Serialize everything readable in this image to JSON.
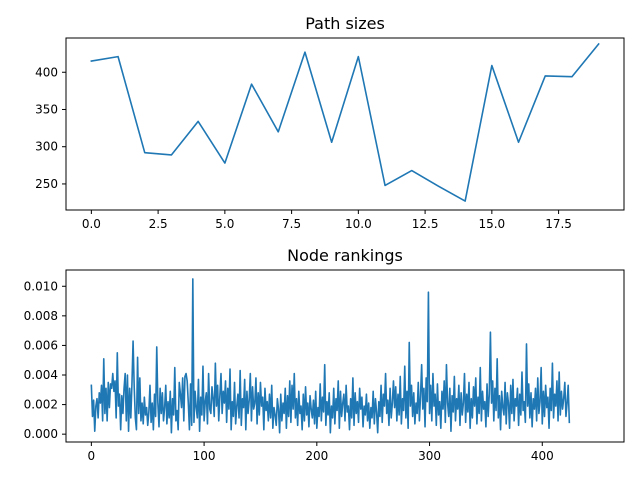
{
  "chart_data": [
    {
      "type": "line",
      "title": "Path sizes",
      "xlabel": "",
      "ylabel": "",
      "xlim": [
        -0.95,
        19.95
      ],
      "ylim": [
        215,
        446
      ],
      "xticks": [
        0.0,
        2.5,
        5.0,
        7.5,
        10.0,
        12.5,
        15.0,
        17.5
      ],
      "xtick_labels": [
        "0.0",
        "2.5",
        "5.0",
        "7.5",
        "10.0",
        "12.5",
        "15.0",
        "17.5"
      ],
      "yticks": [
        250,
        300,
        350,
        400
      ],
      "ytick_labels": [
        "250",
        "300",
        "350",
        "400"
      ],
      "grid": false,
      "color": "#1f77b4",
      "x": [
        0,
        1,
        2,
        3,
        4,
        5,
        6,
        7,
        8,
        9,
        10,
        11,
        12,
        13,
        14,
        15,
        16,
        17,
        18,
        19
      ],
      "y": [
        415,
        421,
        292,
        289,
        334,
        278,
        384,
        320,
        427,
        306,
        421,
        248,
        268,
        247,
        227,
        409,
        306,
        395,
        394,
        438
      ]
    },
    {
      "type": "line",
      "title": "Node rankings",
      "xlabel": "",
      "ylabel": "",
      "xlim": [
        -22.5,
        472.5
      ],
      "ylim": [
        -0.00053,
        0.0111
      ],
      "xticks": [
        0,
        100,
        200,
        300,
        400
      ],
      "xtick_labels": [
        "0",
        "100",
        "200",
        "300",
        "400"
      ],
      "yticks": [
        0.0,
        0.002,
        0.004,
        0.006,
        0.008,
        0.01
      ],
      "ytick_labels": [
        "0.000",
        "0.002",
        "0.004",
        "0.006",
        "0.008",
        "0.010"
      ],
      "grid": false,
      "color": "#1f77b4",
      "x_start": 0,
      "x_step": 1,
      "y": [
        0.0033,
        0.0012,
        0.0023,
        0.0002,
        0.0019,
        0.0024,
        0.0011,
        0.0028,
        0.0021,
        0.0033,
        0.0009,
        0.0051,
        0.0014,
        0.0031,
        0.0009,
        0.0035,
        0.0018,
        0.0034,
        0.0031,
        0.0041,
        0.0029,
        0.0036,
        0.0011,
        0.0055,
        0.0019,
        0.0027,
        0.0003,
        0.0026,
        0.0014,
        0.0031,
        0.0041,
        0.0009,
        0.004,
        0.0002,
        0.0031,
        0.0011,
        0.0034,
        0.0063,
        0.0032,
        0.0011,
        0.0003,
        0.0052,
        0.0014,
        0.0038,
        0.0009,
        0.0021,
        0.0007,
        0.0025,
        0.0013,
        0.0018,
        0.0006,
        0.0015,
        0.0033,
        0.0008,
        0.0021,
        0.0003,
        0.0027,
        0.0012,
        0.0059,
        0.0021,
        0.0005,
        0.0031,
        0.0014,
        0.0028,
        0.0009,
        0.0018,
        0.0033,
        0.0007,
        0.0022,
        0.0011,
        0.0029,
        0.0001,
        0.0024,
        0.0013,
        0.0045,
        0.0009,
        0.0016,
        0.0003,
        0.0035,
        0.0027,
        0.0018,
        0.0038,
        0.0009,
        0.0039,
        0.0041,
        0.0036,
        0.0021,
        0.0003,
        0.0034,
        0.0006,
        0.0105,
        0.0008,
        0.0029,
        0.0018,
        0.0011,
        0.0037,
        0.0002,
        0.0025,
        0.0013,
        0.0046,
        0.0009,
        0.0022,
        0.0028,
        0.0007,
        0.0041,
        0.0017,
        0.0014,
        0.0032,
        0.0024,
        0.0012,
        0.0048,
        0.0019,
        0.0033,
        0.0009,
        0.0026,
        0.0041,
        0.0014,
        0.0029,
        0.0021,
        0.0036,
        0.0008,
        0.0031,
        0.0017,
        0.0044,
        0.0003,
        0.0022,
        0.0012,
        0.0035,
        0.0007,
        0.0019,
        0.0027,
        0.0011,
        0.0043,
        0.0006,
        0.0024,
        0.0018,
        0.0037,
        0.0003,
        0.0029,
        0.0014,
        0.0023,
        0.0041,
        0.0009,
        0.0032,
        0.0017,
        0.0021,
        0.0038,
        0.0007,
        0.0028,
        0.0013,
        0.0035,
        0.0019,
        0.0025,
        0.0003,
        0.0031,
        0.0016,
        0.0022,
        0.0009,
        0.0027,
        0.0011,
        0.0033,
        0.0004,
        0.0018,
        0.0013,
        0.0006,
        0.0024,
        0.0017,
        0.0001,
        0.0027,
        0.0009,
        0.0021,
        0.0014,
        0.0031,
        0.0004,
        0.0026,
        0.0012,
        0.0036,
        0.0008,
        0.0033,
        0.0017,
        0.0041,
        0.0011,
        0.0024,
        0.0006,
        0.0029,
        0.0014,
        0.0019,
        0.0003,
        0.0027,
        0.0009,
        0.0032,
        0.0013,
        0.0021,
        0.0005,
        0.0026,
        0.0017,
        0.0011,
        0.0023,
        0.0007,
        0.0029,
        0.0004,
        0.0018,
        0.0012,
        0.0034,
        0.0009,
        0.0025,
        0.0015,
        0.0047,
        0.0006,
        0.0022,
        0.0013,
        0.0028,
        0.0001,
        0.0019,
        0.0011,
        0.0031,
        0.0007,
        0.0024,
        0.0016,
        0.0036,
        0.0004,
        0.0029,
        0.0012,
        0.0021,
        0.0027,
        0.0009,
        0.0033,
        0.0015,
        0.0019,
        0.0003,
        0.0024,
        0.0011,
        0.0038,
        0.0006,
        0.0028,
        0.0014,
        0.0022,
        0.0008,
        0.0031,
        0.0017,
        0.0025,
        0.0005,
        0.0019,
        0.0013,
        0.0027,
        0.0009,
        0.0021,
        0.0004,
        0.0018,
        0.0011,
        0.0029,
        0.0007,
        0.0024,
        0.0015,
        0.0001,
        0.0022,
        0.0012,
        0.0033,
        0.0008,
        0.0027,
        0.0019,
        0.0041,
        0.0014,
        0.0023,
        0.0006,
        0.0031,
        0.0011,
        0.0021,
        0.0036,
        0.0018,
        0.0032,
        0.0009,
        0.0027,
        0.0013,
        0.0039,
        0.0007,
        0.0024,
        0.0016,
        0.0046,
        0.0011,
        0.0029,
        0.0004,
        0.0062,
        0.0019,
        0.0033,
        0.0012,
        0.0028,
        0.0007,
        0.0021,
        0.0014,
        0.0035,
        0.0009,
        0.0026,
        0.0047,
        0.0017,
        0.0031,
        0.0005,
        0.0038,
        0.0022,
        0.0096,
        0.0014,
        0.0033,
        0.0009,
        0.0041,
        0.0019,
        0.0027,
        0.0006,
        0.0034,
        0.0013,
        0.0022,
        0.0004,
        0.0029,
        0.0017,
        0.0036,
        0.0008,
        0.0047,
        0.0021,
        0.0012,
        0.0031,
        0.0002,
        0.0026,
        0.0015,
        0.0039,
        0.0009,
        0.0024,
        0.0017,
        0.0033,
        0.0006,
        0.0028,
        0.0013,
        0.0021,
        0.0041,
        0.0008,
        0.0027,
        0.0015,
        0.0035,
        0.0004,
        0.0024,
        0.0011,
        0.0032,
        0.0019,
        0.0038,
        0.0007,
        0.0025,
        0.0014,
        0.0045,
        0.0009,
        0.0029,
        0.0017,
        0.0022,
        0.0005,
        0.0034,
        0.0012,
        0.0027,
        0.0069,
        0.0021,
        0.0036,
        0.0009,
        0.0031,
        0.0016,
        0.0051,
        0.0011,
        0.0026,
        0.0003,
        0.0029,
        0.0018,
        0.0013,
        0.0035,
        0.0007,
        0.0028,
        0.0021,
        0.0004,
        0.0033,
        0.0014,
        0.0037,
        0.0009,
        0.0024,
        0.0019,
        0.0031,
        0.0006,
        0.0027,
        0.0013,
        0.0042,
        0.0016,
        0.0022,
        0.0008,
        0.0061,
        0.0019,
        0.0034,
        0.0011,
        0.0028,
        0.0005,
        0.0024,
        0.0017,
        0.0031,
        0.0009,
        0.0038,
        0.0014,
        0.0022,
        0.0045,
        0.0007,
        0.0029,
        0.0012,
        0.0033,
        0.0018,
        0.0025,
        0.0004,
        0.0031,
        0.0016,
        0.0048,
        0.0011,
        0.0027,
        0.0019,
        0.0036,
        0.0009,
        0.0042,
        0.0013,
        0.0029,
        0.0017,
        0.0024,
        0.0035,
        0.0012,
        0.0021,
        0.0033,
        0.0008
      ]
    }
  ]
}
